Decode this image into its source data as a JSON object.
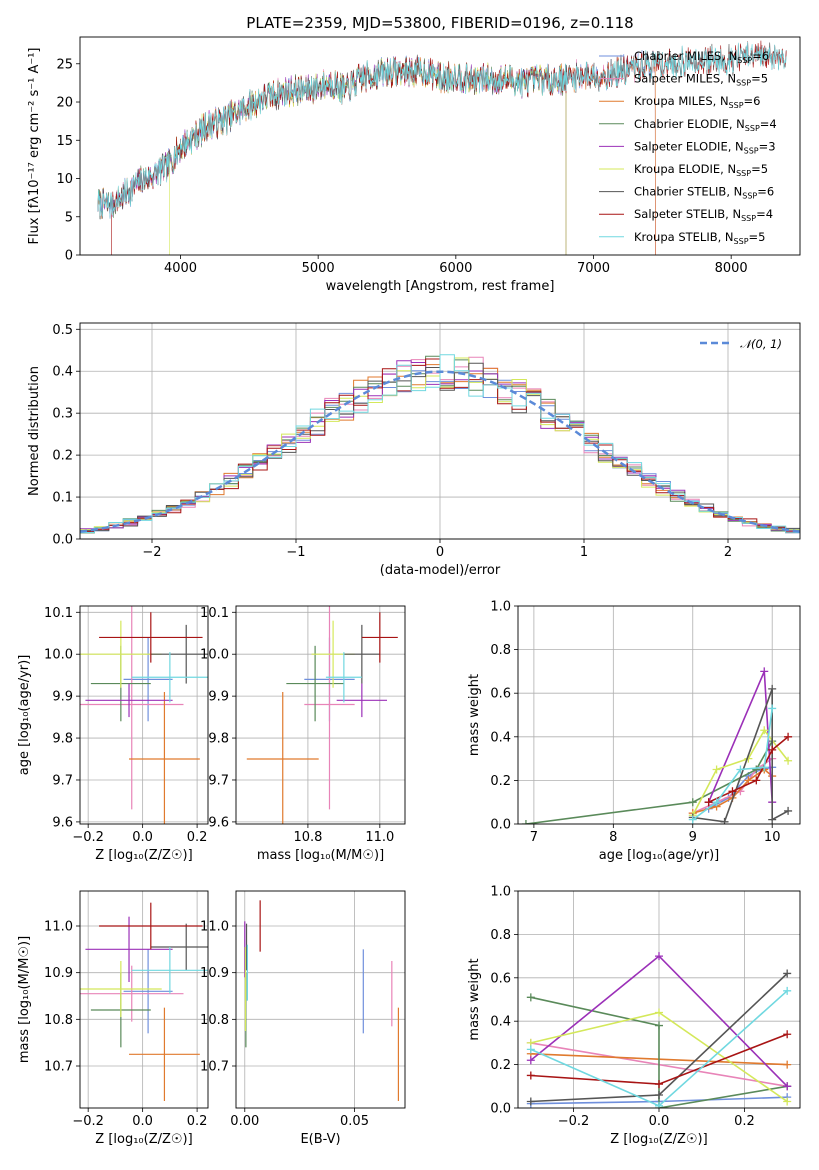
{
  "figure": {
    "title": "PLATE=2359, MJD=53800, FIBERID=0196, z=0.118"
  },
  "colors": {
    "Chabrier MILES": "#6f8fdc",
    "Salpeter MILES": "#e884b8",
    "Kroupa MILES": "#e07a2e",
    "Chabrier ELODIE": "#5a8a5a",
    "Salpeter ELODIE": "#9b30b8",
    "Kroupa ELODIE": "#d4e85a",
    "Chabrier STELIB": "#555555",
    "Salpeter STELIB": "#a81414",
    "Kroupa STELIB": "#70d8e0"
  },
  "chart_data": [
    {
      "id": "spectrum",
      "type": "line",
      "title": "PLATE=2359, MJD=53800, FIBERID=0196, z=0.118",
      "xlabel": "wavelength [Angstrom, rest frame]",
      "ylabel": "Flux [fλ10⁻¹⁷ erg cm⁻² s⁻¹ A⁻¹]",
      "xlim": [
        3270,
        8500
      ],
      "ylim": [
        0,
        28.5
      ],
      "xticks": [
        4000,
        5000,
        6000,
        7000,
        8000
      ],
      "yticks": [
        0,
        5,
        10,
        15,
        20,
        25
      ],
      "grid": false,
      "legend_placement": "top-right",
      "legend": [
        {
          "model": "Chabrier MILES",
          "label": "Chabrier MILES, N",
          "sub": "SSP",
          "suffix": "=6"
        },
        {
          "model": "Salpeter MILES",
          "label": "Salpeter MILES, N",
          "sub": "SSP",
          "suffix": "=5"
        },
        {
          "model": "Kroupa MILES",
          "label": "Kroupa MILES, N",
          "sub": "SSP",
          "suffix": "=6"
        },
        {
          "model": "Chabrier ELODIE",
          "label": "Chabrier ELODIE, N",
          "sub": "SSP",
          "suffix": "=4"
        },
        {
          "model": "Salpeter ELODIE",
          "label": "Salpeter ELODIE, N",
          "sub": "SSP",
          "suffix": "=3"
        },
        {
          "model": "Kroupa ELODIE",
          "label": "Kroupa ELODIE, N",
          "sub": "SSP",
          "suffix": "=5"
        },
        {
          "model": "Chabrier STELIB",
          "label": "Chabrier STELIB, N",
          "sub": "SSP",
          "suffix": "=6"
        },
        {
          "model": "Salpeter STELIB",
          "label": "Salpeter STELIB, N",
          "sub": "SSP",
          "suffix": "=4"
        },
        {
          "model": "Kroupa STELIB",
          "label": "Kroupa STELIB, N",
          "sub": "SSP",
          "suffix": "=5"
        }
      ],
      "continuum": [
        [
          3400,
          6.8
        ],
        [
          3500,
          6.5
        ],
        [
          3600,
          8
        ],
        [
          3700,
          9.5
        ],
        [
          3800,
          10.5
        ],
        [
          3900,
          11.5
        ],
        [
          4000,
          14
        ],
        [
          4100,
          15.5
        ],
        [
          4200,
          17
        ],
        [
          4300,
          17.5
        ],
        [
          4400,
          18.5
        ],
        [
          4500,
          19.5
        ],
        [
          4600,
          20.5
        ],
        [
          4700,
          21
        ],
        [
          4800,
          21.5
        ],
        [
          4900,
          21.5
        ],
        [
          5000,
          22
        ],
        [
          5100,
          22.5
        ],
        [
          5200,
          21.5
        ],
        [
          5300,
          23
        ],
        [
          5400,
          23.5
        ],
        [
          5500,
          24
        ],
        [
          5600,
          24
        ],
        [
          5700,
          24
        ],
        [
          5800,
          24
        ],
        [
          5900,
          23
        ],
        [
          6000,
          23.5
        ],
        [
          6100,
          23
        ],
        [
          6200,
          23
        ],
        [
          6300,
          23
        ],
        [
          6400,
          23
        ],
        [
          6500,
          22.5
        ],
        [
          6600,
          23
        ],
        [
          6700,
          23
        ],
        [
          6800,
          23
        ],
        [
          6900,
          23.5
        ],
        [
          7000,
          23.5
        ],
        [
          7100,
          23.5
        ],
        [
          7200,
          24
        ],
        [
          7300,
          24.5
        ],
        [
          7400,
          25
        ],
        [
          7500,
          25
        ],
        [
          7600,
          25
        ],
        [
          7700,
          25.5
        ],
        [
          7800,
          25.5
        ],
        [
          7900,
          25.5
        ],
        [
          8000,
          25.5
        ],
        [
          8100,
          26
        ],
        [
          8200,
          26
        ],
        [
          8300,
          26
        ],
        [
          8400,
          26
        ]
      ],
      "models": [
        {
          "model": "Chabrier MILES",
          "start": 3400,
          "end": 7450
        },
        {
          "model": "Salpeter MILES",
          "start": 3400,
          "end": 7450
        },
        {
          "model": "Kroupa MILES",
          "start": 3400,
          "end": 7450
        },
        {
          "model": "Chabrier ELODIE",
          "start": 3400,
          "end": 6800
        },
        {
          "model": "Salpeter ELODIE",
          "start": 3400,
          "end": 6800
        },
        {
          "model": "Kroupa ELODIE",
          "start": 3920,
          "end": 6800
        },
        {
          "model": "Chabrier STELIB",
          "start": 3400,
          "end": 8400
        },
        {
          "model": "Salpeter STELIB",
          "start": 3500,
          "end": 8400
        },
        {
          "model": "Kroupa STELIB",
          "start": 3400,
          "end": 8400
        }
      ]
    },
    {
      "id": "residuals",
      "type": "area",
      "xlabel": "(data-model)/error",
      "ylabel": "Normed distribution",
      "xlim": [
        -2.5,
        2.5
      ],
      "ylim": [
        0,
        0.515
      ],
      "xticks": [
        -2,
        -1,
        0,
        1,
        2
      ],
      "yticks": [
        0.0,
        0.1,
        0.2,
        0.3,
        0.4,
        0.5
      ],
      "grid": true,
      "legend_placement": "top-right",
      "reference": {
        "label": "𝒩(0, 1)",
        "mean": 0,
        "sigma": 1
      },
      "bin_width": 0.1
    },
    {
      "id": "age-vs-Z",
      "type": "scatter",
      "xlabel": "Z [log₁₀(Z/Z☉)]",
      "ylabel": "age  [log₁₀(age/yr)]",
      "xlim": [
        -0.23,
        0.24
      ],
      "ylim": [
        9.595,
        10.115
      ],
      "xticks": [
        -0.2,
        0.0,
        0.2
      ],
      "yticks": [
        9.6,
        9.7,
        9.8,
        9.9,
        10.0,
        10.1
      ],
      "grid": true,
      "points": [
        {
          "model": "Chabrier MILES",
          "x": 0.02,
          "xerr": 0.09,
          "y": 9.94,
          "yerr": 0.1
        },
        {
          "model": "Salpeter MILES",
          "x": -0.04,
          "xerr": 0.19,
          "y": 9.88,
          "yerr": 0.25
        },
        {
          "model": "Kroupa MILES",
          "x": 0.08,
          "xerr": 0.13,
          "y": 9.75,
          "yerr": 0.16
        },
        {
          "model": "Chabrier ELODIE",
          "x": -0.08,
          "xerr": 0.11,
          "y": 9.93,
          "yerr": 0.09
        },
        {
          "model": "Salpeter ELODIE",
          "x": -0.05,
          "xerr": 0.16,
          "y": 9.89,
          "yerr": 0.04
        },
        {
          "model": "Kroupa ELODIE",
          "x": -0.08,
          "xerr": 0.15,
          "y": 10.0,
          "yerr": 0.08
        },
        {
          "model": "Chabrier STELIB",
          "x": 0.16,
          "xerr": 0.13,
          "y": 10.0,
          "yerr": 0.07
        },
        {
          "model": "Salpeter STELIB",
          "x": 0.03,
          "xerr": 0.19,
          "y": 10.04,
          "yerr": 0.06
        },
        {
          "model": "Kroupa STELIB",
          "x": 0.1,
          "xerr": 0.14,
          "y": 9.945,
          "yerr": 0.06
        }
      ]
    },
    {
      "id": "age-vs-mass",
      "type": "scatter",
      "xlabel": "mass [log₁₀(M/M☉)]",
      "ylabel": "",
      "xlim": [
        10.6,
        11.07
      ],
      "ylim": [
        9.595,
        10.115
      ],
      "xticks": [
        10.8,
        11.0
      ],
      "yticks": [
        9.6,
        9.7,
        9.8,
        9.9,
        10.0,
        10.1
      ],
      "grid": true,
      "points": [
        {
          "model": "Chabrier MILES",
          "x": 10.86,
          "xerr": 0.07,
          "y": 9.94,
          "yerr": 0.1
        },
        {
          "model": "Salpeter MILES",
          "x": 10.86,
          "xerr": 0.07,
          "y": 9.88,
          "yerr": 0.25
        },
        {
          "model": "Kroupa MILES",
          "x": 10.73,
          "xerr": 0.1,
          "y": 9.75,
          "yerr": 0.16
        },
        {
          "model": "Chabrier ELODIE",
          "x": 10.82,
          "xerr": 0.08,
          "y": 9.93,
          "yerr": 0.09
        },
        {
          "model": "Salpeter ELODIE",
          "x": 10.95,
          "xerr": 0.07,
          "y": 9.89,
          "yerr": 0.04
        },
        {
          "model": "Kroupa ELODIE",
          "x": 10.87,
          "xerr": 0.06,
          "y": 10.0,
          "yerr": 0.08
        },
        {
          "model": "Chabrier STELIB",
          "x": 10.95,
          "xerr": 0.05,
          "y": 10.0,
          "yerr": 0.07
        },
        {
          "model": "Salpeter STELIB",
          "x": 11.0,
          "xerr": 0.05,
          "y": 10.04,
          "yerr": 0.06
        },
        {
          "model": "Kroupa STELIB",
          "x": 10.9,
          "xerr": 0.05,
          "y": 9.945,
          "yerr": 0.06
        }
      ]
    },
    {
      "id": "mass-weight-vs-age",
      "type": "line",
      "xlabel": "age  [log₁₀(age/yr)]",
      "ylabel": "mass weight",
      "xlim": [
        6.8,
        10.35
      ],
      "ylim": [
        0,
        1.0
      ],
      "xticks": [
        7,
        8,
        9,
        10
      ],
      "yticks": [
        0.0,
        0.2,
        0.4,
        0.6,
        0.8,
        1.0
      ],
      "grid": true,
      "series": [
        {
          "model": "Chabrier MILES",
          "x": [
            9.2,
            9.45,
            9.7,
            9.85,
            10.0
          ],
          "y": [
            0.07,
            0.12,
            0.22,
            0.25,
            0.26
          ]
        },
        {
          "model": "Salpeter MILES",
          "x": [
            9.0,
            9.3,
            9.6,
            9.8,
            10.0
          ],
          "y": [
            0.05,
            0.1,
            0.15,
            0.25,
            0.3
          ]
        },
        {
          "model": "Kroupa MILES",
          "x": [
            9.0,
            9.3,
            9.5,
            9.7,
            9.9,
            10.0
          ],
          "y": [
            0.05,
            0.08,
            0.12,
            0.2,
            0.25,
            0.22
          ]
        },
        {
          "model": "Chabrier ELODIE",
          "x": [
            6.9,
            9.0,
            9.8,
            10.0
          ],
          "y": [
            0.0,
            0.1,
            0.25,
            0.38
          ]
        },
        {
          "model": "Salpeter ELODIE",
          "x": [
            9.2,
            9.9,
            10.0
          ],
          "y": [
            0.1,
            0.7,
            0.1
          ]
        },
        {
          "model": "Kroupa ELODIE",
          "x": [
            9.0,
            9.3,
            9.7,
            9.9,
            10.2
          ],
          "y": [
            0.04,
            0.25,
            0.3,
            0.43,
            0.29
          ]
        },
        {
          "model": "Chabrier STELIB",
          "x": [
            9.0,
            9.4,
            10.0,
            10.0,
            10.2
          ],
          "y": [
            0.03,
            0.01,
            0.62,
            0.02,
            0.06
          ]
        },
        {
          "model": "Salpeter STELIB",
          "x": [
            9.2,
            9.5,
            9.8,
            10.0,
            10.2
          ],
          "y": [
            0.1,
            0.15,
            0.2,
            0.34,
            0.4
          ]
        },
        {
          "model": "Kroupa STELIB",
          "x": [
            9.0,
            9.3,
            9.6,
            9.9,
            10.0
          ],
          "y": [
            0.02,
            0.1,
            0.25,
            0.26,
            0.53
          ]
        }
      ]
    },
    {
      "id": "mass-vs-Z",
      "type": "scatter",
      "xlabel": "Z [log₁₀(Z/Z☉)]",
      "ylabel": "mass [log₁₀(M/M☉)]",
      "xlim": [
        -0.23,
        0.24
      ],
      "ylim": [
        10.61,
        11.075
      ],
      "xticks": [
        -0.2,
        0.0,
        0.2
      ],
      "yticks": [
        10.7,
        10.8,
        10.9,
        11.0
      ],
      "grid": true,
      "points": [
        {
          "model": "Chabrier MILES",
          "x": 0.02,
          "xerr": 0.09,
          "y": 10.86,
          "yerr": 0.09
        },
        {
          "model": "Salpeter MILES",
          "x": -0.04,
          "xerr": 0.19,
          "y": 10.855,
          "yerr": 0.06
        },
        {
          "model": "Kroupa MILES",
          "x": 0.08,
          "xerr": 0.13,
          "y": 10.725,
          "yerr": 0.1
        },
        {
          "model": "Chabrier ELODIE",
          "x": -0.08,
          "xerr": 0.11,
          "y": 10.82,
          "yerr": 0.08
        },
        {
          "model": "Salpeter ELODIE",
          "x": -0.05,
          "xerr": 0.16,
          "y": 10.95,
          "yerr": 0.07
        },
        {
          "model": "Kroupa ELODIE",
          "x": -0.08,
          "xerr": 0.15,
          "y": 10.865,
          "yerr": 0.06
        },
        {
          "model": "Chabrier STELIB",
          "x": 0.16,
          "xerr": 0.13,
          "y": 10.955,
          "yerr": 0.05
        },
        {
          "model": "Salpeter STELIB",
          "x": 0.03,
          "xerr": 0.19,
          "y": 11.0,
          "yerr": 0.05
        },
        {
          "model": "Kroupa STELIB",
          "x": 0.1,
          "xerr": 0.14,
          "y": 10.905,
          "yerr": 0.05
        }
      ]
    },
    {
      "id": "mass-vs-ebv",
      "type": "scatter",
      "xlabel": "E(B-V)",
      "ylabel": "",
      "xlim": [
        -0.004,
        0.073
      ],
      "ylim": [
        10.61,
        11.075
      ],
      "xticks": [
        0.0,
        0.05
      ],
      "yticks": [
        10.7,
        10.8,
        10.9,
        11.0
      ],
      "grid": true,
      "points": [
        {
          "model": "Chabrier MILES",
          "x": 0.054,
          "y": 10.86,
          "yerr": 0.09
        },
        {
          "model": "Salpeter MILES",
          "x": 0.067,
          "y": 10.855,
          "yerr": 0.07
        },
        {
          "model": "Kroupa MILES",
          "x": 0.07,
          "y": 10.725,
          "yerr": 0.1
        },
        {
          "model": "Chabrier ELODIE",
          "x": 0.0005,
          "y": 10.82,
          "yerr": 0.08
        },
        {
          "model": "Salpeter ELODIE",
          "x": 0.0,
          "y": 10.95,
          "yerr": 0.06
        },
        {
          "model": "Kroupa ELODIE",
          "x": 0.0003,
          "y": 10.865,
          "yerr": 0.09
        },
        {
          "model": "Chabrier STELIB",
          "x": 0.0008,
          "y": 10.955,
          "yerr": 0.05
        },
        {
          "model": "Salpeter STELIB",
          "x": 0.007,
          "y": 11.0,
          "yerr": 0.055
        },
        {
          "model": "Kroupa STELIB",
          "x": 0.0012,
          "y": 10.9,
          "yerr": 0.06
        }
      ]
    },
    {
      "id": "mass-weight-vs-Z",
      "type": "line",
      "xlabel": "Z [log₁₀(Z/Z☉)]",
      "ylabel": "mass weight",
      "xlim": [
        -0.33,
        0.33
      ],
      "ylim": [
        0,
        1.0
      ],
      "xticks": [
        -0.2,
        0.0,
        0.2
      ],
      "yticks": [
        0.0,
        0.2,
        0.4,
        0.6,
        0.8,
        1.0
      ],
      "grid": true,
      "series": [
        {
          "model": "Chabrier MILES",
          "x": [
            -0.3,
            0.0,
            0.3
          ],
          "y": [
            0.02,
            0.03,
            0.05
          ]
        },
        {
          "model": "Salpeter MILES",
          "x": [
            -0.3,
            0.3
          ],
          "y": [
            0.3,
            0.1
          ]
        },
        {
          "model": "Kroupa MILES",
          "x": [
            -0.3,
            0.3
          ],
          "y": [
            0.25,
            0.2
          ]
        },
        {
          "model": "Chabrier ELODIE",
          "x": [
            -0.3,
            0.0,
            0.0,
            0.3
          ],
          "y": [
            0.51,
            0.38,
            0.0,
            0.1
          ]
        },
        {
          "model": "Salpeter ELODIE",
          "x": [
            -0.3,
            0.0,
            0.3
          ],
          "y": [
            0.22,
            0.7,
            0.1
          ]
        },
        {
          "model": "Kroupa ELODIE",
          "x": [
            -0.3,
            0.0,
            0.3
          ],
          "y": [
            0.3,
            0.44,
            0.03
          ]
        },
        {
          "model": "Chabrier STELIB",
          "x": [
            -0.3,
            0.0,
            0.3
          ],
          "y": [
            0.03,
            0.06,
            0.62
          ]
        },
        {
          "model": "Salpeter STELIB",
          "x": [
            -0.3,
            0.0,
            0.3
          ],
          "y": [
            0.15,
            0.11,
            0.34
          ]
        },
        {
          "model": "Kroupa STELIB",
          "x": [
            -0.3,
            0.0,
            0.3
          ],
          "y": [
            0.27,
            0.01,
            0.54
          ]
        }
      ]
    }
  ]
}
